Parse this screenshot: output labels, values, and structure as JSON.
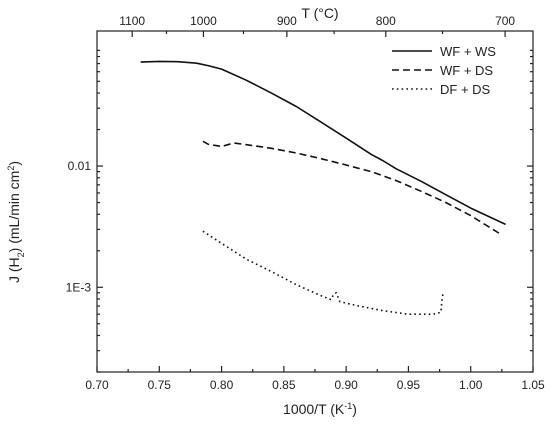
{
  "chart_data": {
    "type": "line",
    "xlabel": "1000/T (K",
    "xlabel_sup": "-1",
    "xlabel_end": ")",
    "ylabel_parts": [
      "J (H",
      "2",
      ") (mL/min cm",
      "2",
      ")"
    ],
    "top_axis_label": "T (°C)",
    "xlim": [
      0.7,
      1.05
    ],
    "ylim": [
      0.0002,
      0.13
    ],
    "yscale": "log",
    "x_ticks": [
      "0.70",
      "0.75",
      "0.80",
      "0.85",
      "0.90",
      "0.95",
      "1.00",
      "1.05"
    ],
    "x_tick_values": [
      0.7,
      0.75,
      0.8,
      0.85,
      0.9,
      0.95,
      1.0,
      1.05
    ],
    "y_ticks": [
      "0.01",
      "1E-3"
    ],
    "y_tick_values": [
      0.01,
      0.001
    ],
    "top_ticks": [
      "1100",
      "1000",
      "900",
      "800",
      "700"
    ],
    "top_tick_celsius": [
      1100,
      1000,
      900,
      800,
      700
    ],
    "legend_position": "top-right",
    "series": [
      {
        "name": "WF + WS",
        "dash": "solid",
        "x": [
          0.735,
          0.75,
          0.765,
          0.78,
          0.79,
          0.8,
          0.82,
          0.84,
          0.86,
          0.88,
          0.9,
          0.92,
          0.93,
          0.94,
          0.96,
          0.98,
          1.0,
          1.028
        ],
        "y": [
          0.072,
          0.073,
          0.0725,
          0.0705,
          0.067,
          0.063,
          0.051,
          0.04,
          0.031,
          0.023,
          0.017,
          0.0125,
          0.011,
          0.0095,
          0.0075,
          0.0058,
          0.0045,
          0.0033
        ]
      },
      {
        "name": "WF + DS",
        "dash": "dashed",
        "x": [
          0.785,
          0.79,
          0.795,
          0.8,
          0.805,
          0.81,
          0.82,
          0.84,
          0.86,
          0.88,
          0.9,
          0.92,
          0.94,
          0.96,
          0.98,
          1.0,
          1.025
        ],
        "y": [
          0.016,
          0.015,
          0.0148,
          0.0145,
          0.015,
          0.0155,
          0.015,
          0.014,
          0.0128,
          0.0115,
          0.0102,
          0.009,
          0.0076,
          0.0062,
          0.005,
          0.0039,
          0.0027
        ]
      },
      {
        "name": "DF + DS",
        "dash": "dotted",
        "x": [
          0.785,
          0.8,
          0.82,
          0.84,
          0.86,
          0.88,
          0.888,
          0.89,
          0.892,
          0.895,
          0.91,
          0.93,
          0.95,
          0.97,
          0.976,
          0.977,
          0.978
        ],
        "y": [
          0.0029,
          0.0023,
          0.0017,
          0.00135,
          0.00105,
          0.00085,
          0.00079,
          0.00088,
          0.0009,
          0.00076,
          0.0007,
          0.00064,
          0.0006,
          0.0006,
          0.00062,
          0.0008,
          0.00092
        ]
      }
    ]
  }
}
